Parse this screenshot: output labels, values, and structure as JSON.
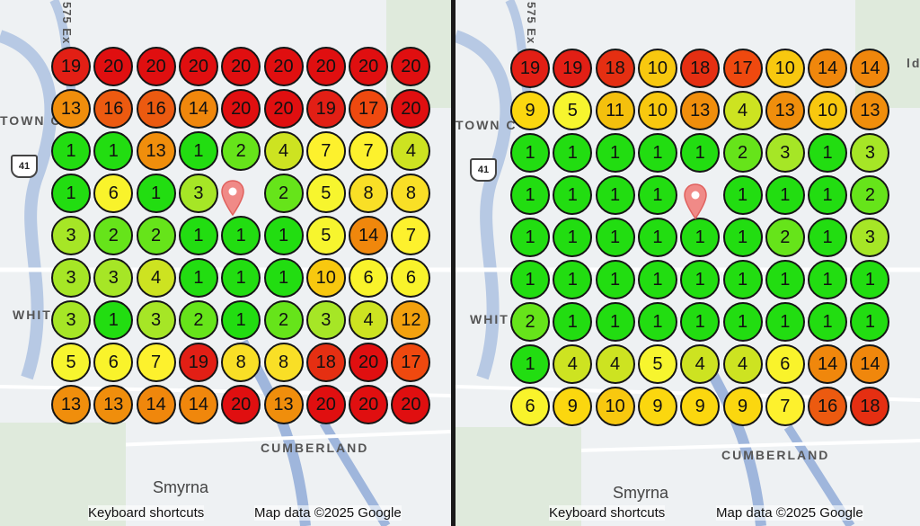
{
  "footer": {
    "shortcuts": "Keyboard shortcuts",
    "attribution": "Map data ©2025 Google"
  },
  "map_labels": {
    "town_center": "TOWN C",
    "white": "WHIT",
    "cumberland": "CUMBERLAND",
    "smyrna": "Smyrna",
    "route": "41",
    "interstate": "575 Ex",
    "vinings_fragment": "ld"
  },
  "colors": {
    "1": "#22dd11",
    "2": "#66e41a",
    "3": "#a6e626",
    "4": "#cde321",
    "5": "#f7f52e",
    "6": "#f9f32b",
    "7": "#fdf12d",
    "8": "#f9df26",
    "9": "#fbd70f",
    "10": "#f8c80f",
    "11": "#f4c00d",
    "12": "#f3a10e",
    "13": "#f08e0c",
    "14": "#f0870c",
    "16": "#ec5a10",
    "17": "#ef490f",
    "18": "#e52f12",
    "19": "#e21f15",
    "20": "#e00f10"
  },
  "grids": [
    {
      "name": "left",
      "values": [
        [
          19,
          20,
          20,
          20,
          20,
          20,
          20,
          20,
          20
        ],
        [
          13,
          16,
          16,
          14,
          20,
          20,
          19,
          17,
          20
        ],
        [
          1,
          1,
          13,
          1,
          2,
          4,
          7,
          7,
          4
        ],
        [
          1,
          6,
          1,
          3,
          null,
          2,
          5,
          8,
          8
        ],
        [
          3,
          2,
          2,
          1,
          1,
          1,
          5,
          14,
          7
        ],
        [
          3,
          3,
          4,
          1,
          1,
          1,
          10,
          6,
          6
        ],
        [
          3,
          1,
          3,
          2,
          1,
          2,
          3,
          4,
          12
        ],
        [
          5,
          6,
          7,
          19,
          8,
          8,
          18,
          20,
          17
        ],
        [
          13,
          13,
          14,
          14,
          20,
          13,
          20,
          20,
          20
        ]
      ]
    },
    {
      "name": "right",
      "values": [
        [
          19,
          19,
          18,
          10,
          18,
          17,
          10,
          14,
          14
        ],
        [
          9,
          5,
          11,
          10,
          13,
          4,
          13,
          10,
          13
        ],
        [
          1,
          1,
          1,
          1,
          1,
          2,
          3,
          1,
          3
        ],
        [
          1,
          1,
          1,
          1,
          null,
          1,
          1,
          1,
          2
        ],
        [
          1,
          1,
          1,
          1,
          1,
          1,
          2,
          1,
          3
        ],
        [
          1,
          1,
          1,
          1,
          1,
          1,
          1,
          1,
          1
        ],
        [
          2,
          1,
          1,
          1,
          1,
          1,
          1,
          1,
          1
        ],
        [
          1,
          4,
          4,
          5,
          4,
          4,
          6,
          14,
          14
        ],
        [
          6,
          9,
          10,
          9,
          9,
          9,
          7,
          16,
          18
        ]
      ]
    }
  ]
}
